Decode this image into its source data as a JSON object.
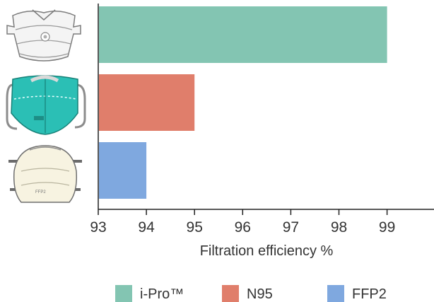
{
  "chart_data": {
    "type": "bar",
    "orientation": "horizontal",
    "categories": [
      "i-Pro™",
      "N95",
      "FFP2"
    ],
    "values": [
      99,
      95,
      94
    ],
    "xlabel": "Filtration efficiency %",
    "ylabel": "",
    "xlim": [
      93,
      99
    ],
    "xticks": [
      "93",
      "94",
      "95",
      "96",
      "97",
      "98",
      "99"
    ],
    "grid": false,
    "legend_position": "bottom",
    "colors": [
      "#83c5b2",
      "#e07e6b",
      "#7fa8df"
    ],
    "category_icons": [
      "valved-respirator-icon",
      "kn95-mask-icon",
      "ffp2-cup-mask-icon"
    ]
  }
}
